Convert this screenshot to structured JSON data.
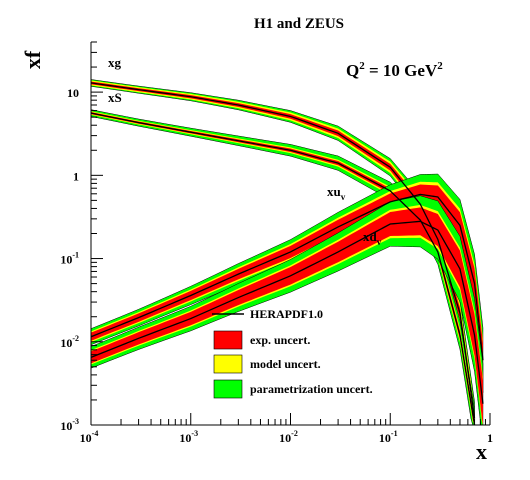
{
  "chart_data": {
    "type": "line",
    "title": "H1 and ZEUS",
    "annotation": {
      "base": "Q",
      "sup1": "2",
      "mid": " = 10 GeV",
      "sup2": "2"
    },
    "xlabel": "x",
    "ylabel": "xf",
    "x_scale": "log",
    "y_scale": "log",
    "xlim": [
      0.0001,
      1
    ],
    "ylim": [
      0.001,
      40
    ],
    "grid": false,
    "legend_position": "lower-center",
    "x_ticks": [
      {
        "v": 0.0001,
        "base": "10",
        "exp": "-4"
      },
      {
        "v": 0.001,
        "base": "10",
        "exp": "-3"
      },
      {
        "v": 0.01,
        "base": "10",
        "exp": "-2"
      },
      {
        "v": 0.1,
        "base": "10",
        "exp": "-1"
      },
      {
        "v": 1,
        "base": "1",
        "exp": ""
      }
    ],
    "y_ticks": [
      {
        "v": 0.001,
        "base": "10",
        "exp": "-3"
      },
      {
        "v": 0.01,
        "base": "10",
        "exp": "-2"
      },
      {
        "v": 0.1,
        "base": "10",
        "exp": "-1"
      },
      {
        "v": 1,
        "base": "1",
        "exp": ""
      },
      {
        "v": 10,
        "base": "10",
        "exp": ""
      }
    ],
    "series": [
      {
        "label_base": "xg",
        "label_sub": "",
        "x": [
          0.0001,
          0.0003,
          0.001,
          0.003,
          0.01,
          0.03,
          0.1,
          0.2,
          0.3,
          0.5,
          0.7
        ],
        "y": [
          12.9,
          10.7,
          8.8,
          7.0,
          5.1,
          3.2,
          1.25,
          0.45,
          0.17,
          0.022,
          0.0012
        ],
        "band_exp": 0.04,
        "band_model": 0.07,
        "band_param": 0.1
      },
      {
        "label_base": "xS",
        "label_sub": "",
        "x": [
          0.0001,
          0.0003,
          0.001,
          0.003,
          0.01,
          0.03,
          0.1,
          0.2,
          0.3,
          0.5,
          0.7
        ],
        "y": [
          5.6,
          4.3,
          3.3,
          2.6,
          2.0,
          1.4,
          0.65,
          0.29,
          0.12,
          0.012,
          0.001
        ],
        "band_exp": 0.03,
        "band_model": 0.05,
        "band_param": 0.1
      },
      {
        "label_base": "xu",
        "label_sub": "v",
        "x": [
          0.0001,
          0.0003,
          0.001,
          0.003,
          0.01,
          0.03,
          0.1,
          0.2,
          0.3,
          0.5,
          0.7,
          0.85
        ],
        "y": [
          0.0115,
          0.0195,
          0.036,
          0.065,
          0.12,
          0.24,
          0.48,
          0.59,
          0.55,
          0.25,
          0.05,
          0.006
        ],
        "band_exp": 0.12,
        "band_model": 0.16,
        "band_param": 0.25
      },
      {
        "label_base": "xd",
        "label_sub": "v",
        "x": [
          0.0001,
          0.0003,
          0.001,
          0.003,
          0.01,
          0.03,
          0.1,
          0.2,
          0.3,
          0.5,
          0.7,
          0.85
        ],
        "y": [
          0.0065,
          0.011,
          0.019,
          0.034,
          0.062,
          0.12,
          0.26,
          0.28,
          0.22,
          0.075,
          0.012,
          0.0018
        ],
        "band_exp": 0.18,
        "band_model": 0.22,
        "band_param": 0.35
      }
    ],
    "legend": [
      {
        "key": "central",
        "label": "HERAPDF1.0"
      },
      {
        "key": "exp",
        "label": "exp. uncert.",
        "color": "#ff0000"
      },
      {
        "key": "model",
        "label": "model uncert.",
        "color": "#ffff00"
      },
      {
        "key": "param",
        "label": "parametrization uncert.",
        "color": "#00ff00"
      }
    ],
    "colors": {
      "line": "#000000",
      "exp": "#ff0000",
      "model": "#ffff00",
      "param": "#00ff00"
    }
  }
}
